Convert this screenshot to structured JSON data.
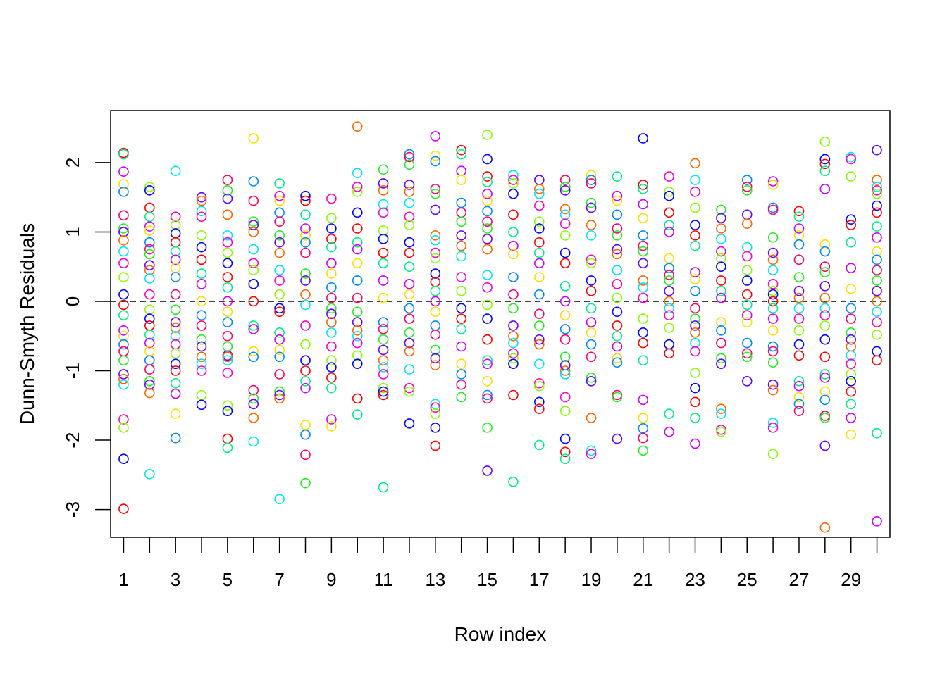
{
  "chart_data": {
    "type": "scatter",
    "title": "",
    "xlabel": "Row index",
    "ylabel": "Dunn-Smyth Residuals",
    "xlim": [
      0.5,
      30.5
    ],
    "ylim": [
      -3.4,
      2.75
    ],
    "x_ticks": [
      1,
      2,
      3,
      4,
      5,
      6,
      7,
      8,
      9,
      10,
      11,
      12,
      13,
      14,
      15,
      16,
      17,
      18,
      19,
      20,
      21,
      22,
      23,
      24,
      25,
      26,
      27,
      28,
      29,
      30
    ],
    "x_tick_labels": [
      "1",
      "",
      "3",
      "",
      "5",
      "",
      "7",
      "",
      "9",
      "",
      "11",
      "",
      "13",
      "",
      "15",
      "",
      "17",
      "",
      "19",
      "",
      "21",
      "",
      "23",
      "",
      "25",
      "",
      "27",
      "",
      "29",
      ""
    ],
    "y_ticks": [
      -3,
      -2,
      -1,
      0,
      1,
      2
    ],
    "y_tick_labels": [
      "-3",
      "-2",
      "-1",
      "0",
      "1",
      "2"
    ],
    "reference_line": {
      "y": 0,
      "style": "dashed"
    },
    "grid": false,
    "legend": "none",
    "marker": "open-circle",
    "palette": [
      "#FF0000",
      "#FF6600",
      "#FFDD00",
      "#88FF00",
      "#22EE22",
      "#00EE88",
      "#00E5FF",
      "#0088FF",
      "#0000FF",
      "#6600FF",
      "#CC00FF",
      "#FF00CC",
      "#FF0066"
    ],
    "points_by_row": [
      [
        2.14,
        2.12,
        1.87,
        1.69,
        1.58,
        1.24,
        1.05,
        1.0,
        0.88,
        0.72,
        0.55,
        0.35,
        0.1,
        -0.05,
        -0.2,
        -0.42,
        -0.5,
        -0.62,
        -0.72,
        -0.85,
        -1.05,
        -1.12,
        -1.2,
        -1.7,
        -1.82,
        -2.27,
        -2.99
      ],
      [
        1.65,
        1.6,
        1.35,
        1.22,
        1.08,
        1.02,
        0.85,
        0.75,
        0.68,
        0.52,
        0.45,
        0.33,
        0.1,
        -0.12,
        -0.25,
        -0.35,
        -0.48,
        -0.6,
        -0.72,
        -0.85,
        -0.98,
        -1.15,
        -1.2,
        -1.32,
        -2.49
      ],
      [
        1.88,
        1.22,
        1.1,
        0.98,
        0.85,
        0.72,
        0.6,
        0.48,
        0.35,
        0.1,
        -0.12,
        -0.3,
        -0.38,
        -0.5,
        -0.62,
        -0.75,
        -0.9,
        -1.0,
        -1.18,
        -1.33,
        -1.62,
        -1.97
      ],
      [
        1.5,
        1.45,
        1.3,
        1.22,
        0.95,
        0.78,
        0.6,
        0.4,
        0.25,
        0.0,
        -0.2,
        -0.35,
        -0.55,
        -0.65,
        -0.8,
        -0.9,
        -1.0,
        -1.35,
        -1.49
      ],
      [
        1.75,
        1.6,
        1.48,
        1.25,
        0.95,
        0.85,
        0.7,
        0.55,
        0.35,
        0.2,
        0.0,
        -0.15,
        -0.3,
        -0.5,
        -0.65,
        -0.78,
        -0.8,
        -0.85,
        -1.03,
        -1.5,
        -1.58,
        -1.98,
        -2.11
      ],
      [
        2.35,
        1.73,
        1.45,
        1.15,
        1.1,
        1.0,
        0.75,
        0.55,
        0.45,
        0.25,
        0.0,
        -0.35,
        -0.4,
        -0.72,
        -0.8,
        -1.28,
        -1.4,
        -1.48,
        -1.68,
        -2.02
      ],
      [
        1.7,
        1.52,
        1.45,
        1.28,
        1.15,
        0.95,
        0.85,
        0.7,
        0.45,
        0.3,
        0.1,
        -0.1,
        -0.15,
        -0.45,
        -0.55,
        -0.7,
        -0.8,
        -1.05,
        -1.3,
        -1.35,
        -1.4,
        -2.85
      ],
      [
        1.52,
        1.45,
        1.25,
        1.05,
        0.95,
        0.85,
        0.7,
        0.4,
        0.3,
        0.1,
        -0.05,
        -0.35,
        -0.62,
        -0.85,
        -1.0,
        -1.15,
        -1.25,
        -1.78,
        -1.92,
        -2.21,
        -2.62
      ],
      [
        1.48,
        1.2,
        1.05,
        0.9,
        0.78,
        0.55,
        0.4,
        0.2,
        0.05,
        -0.1,
        -0.18,
        -0.3,
        -0.45,
        -0.65,
        -0.85,
        -0.95,
        -1.1,
        -1.25,
        -1.7,
        -1.8
      ],
      [
        2.52,
        1.85,
        1.65,
        1.58,
        1.28,
        1.05,
        0.85,
        0.75,
        0.55,
        0.3,
        0.05,
        -0.15,
        -0.3,
        -0.42,
        -0.5,
        -0.6,
        -0.78,
        -0.9,
        -1.4,
        -1.63
      ],
      [
        1.9,
        1.7,
        1.6,
        1.4,
        1.28,
        1.02,
        0.9,
        0.7,
        0.55,
        0.3,
        0.05,
        -0.3,
        -0.4,
        -0.55,
        -0.7,
        -0.85,
        -0.95,
        -1.05,
        -1.25,
        -1.3,
        -1.35,
        -2.68
      ],
      [
        2.12,
        2.08,
        1.97,
        1.68,
        1.58,
        1.42,
        1.22,
        1.1,
        0.85,
        0.7,
        0.5,
        0.25,
        0.1,
        -0.1,
        -0.25,
        -0.45,
        -0.6,
        -0.72,
        -0.98,
        -1.25,
        -1.3,
        -1.76
      ],
      [
        2.38,
        2.1,
        2.02,
        1.62,
        1.55,
        1.32,
        0.95,
        0.88,
        0.7,
        0.62,
        0.4,
        0.28,
        0.15,
        0.0,
        -0.15,
        -0.35,
        -0.48,
        -0.7,
        -0.82,
        -0.92,
        -1.48,
        -1.53,
        -1.62,
        -1.82,
        -2.08
      ],
      [
        2.18,
        2.12,
        1.88,
        1.75,
        1.42,
        1.28,
        1.15,
        0.95,
        0.8,
        0.65,
        0.35,
        0.15,
        -0.1,
        -0.25,
        -0.4,
        -0.65,
        -0.9,
        -1.05,
        -1.2,
        -1.38
      ],
      [
        2.4,
        2.05,
        1.8,
        1.72,
        1.55,
        1.45,
        1.3,
        1.15,
        1.05,
        0.9,
        0.75,
        0.38,
        0.2,
        -0.05,
        -0.25,
        -0.55,
        -0.85,
        -0.9,
        -1.15,
        -1.35,
        -1.4,
        -1.82,
        -2.44
      ],
      [
        1.82,
        1.75,
        1.7,
        1.55,
        1.25,
        1.0,
        0.8,
        0.68,
        0.35,
        0.1,
        -0.1,
        -0.35,
        -0.5,
        -0.6,
        -0.75,
        -0.82,
        -0.9,
        -1.35,
        -2.6
      ],
      [
        1.75,
        1.62,
        1.55,
        1.38,
        1.15,
        1.05,
        0.85,
        0.7,
        0.55,
        0.35,
        0.1,
        -0.18,
        -0.35,
        -0.55,
        -0.62,
        -0.9,
        -1.18,
        -1.22,
        -1.45,
        -1.55,
        -2.07
      ],
      [
        1.75,
        1.65,
        1.6,
        1.33,
        1.25,
        1.12,
        0.95,
        0.7,
        0.55,
        0.22,
        0.0,
        -0.2,
        -0.4,
        -0.55,
        -0.8,
        -0.92,
        -1.0,
        -1.05,
        -1.38,
        -1.58,
        -1.98,
        -2.17,
        -2.27
      ],
      [
        1.82,
        1.75,
        1.7,
        1.42,
        1.35,
        1.1,
        0.95,
        0.6,
        0.55,
        0.3,
        0.15,
        -0.1,
        -0.3,
        -0.45,
        -0.62,
        -0.8,
        -1.1,
        -1.15,
        -1.68,
        -2.15,
        -2.2
      ],
      [
        1.8,
        1.52,
        1.45,
        1.25,
        1.05,
        0.95,
        0.75,
        0.68,
        0.45,
        0.25,
        0.05,
        -0.15,
        -0.35,
        -0.5,
        -0.65,
        -0.82,
        -0.88,
        -1.35,
        -1.38,
        -1.98
      ],
      [
        2.35,
        1.68,
        1.62,
        1.4,
        1.2,
        0.95,
        0.8,
        0.72,
        0.55,
        0.3,
        0.2,
        0.05,
        -0.25,
        -0.45,
        -0.6,
        -0.85,
        -1.42,
        -1.68,
        -1.83,
        -1.97,
        -2.15
      ],
      [
        1.8,
        1.58,
        1.52,
        1.28,
        1.1,
        1.0,
        0.62,
        0.48,
        0.38,
        0.3,
        0.15,
        0.0,
        -0.1,
        -0.2,
        -0.38,
        -0.62,
        -0.75,
        -1.62,
        -1.88
      ],
      [
        1.99,
        1.75,
        1.58,
        1.35,
        1.1,
        0.95,
        0.8,
        0.42,
        0.32,
        0.15,
        -0.1,
        -0.25,
        -0.35,
        -0.45,
        -0.6,
        -0.72,
        -1.03,
        -1.25,
        -1.45,
        -1.68,
        -2.05
      ],
      [
        1.32,
        1.2,
        1.05,
        0.9,
        0.72,
        0.62,
        0.5,
        0.3,
        0.15,
        0.05,
        -0.3,
        -0.42,
        -0.6,
        -0.82,
        -0.9,
        -1.55,
        -1.62,
        -1.85,
        -1.88
      ],
      [
        1.75,
        1.65,
        1.6,
        1.25,
        1.12,
        0.78,
        0.65,
        0.45,
        0.3,
        0.1,
        -0.05,
        -0.2,
        -0.3,
        -0.6,
        -0.75,
        -0.8,
        -1.15
      ],
      [
        1.73,
        1.68,
        1.35,
        1.32,
        0.92,
        0.7,
        0.6,
        0.45,
        0.25,
        0.15,
        0.1,
        0.0,
        -0.1,
        -0.25,
        -0.42,
        -0.65,
        -0.72,
        -0.88,
        -1.2,
        -1.28,
        -1.75,
        -1.82,
        -2.2
      ],
      [
        1.3,
        1.22,
        1.05,
        0.95,
        0.82,
        0.6,
        0.35,
        0.15,
        0.05,
        -0.1,
        -0.25,
        -0.42,
        -0.62,
        -0.78,
        -1.15,
        -1.22,
        -1.38,
        -1.48,
        -1.58
      ],
      [
        2.3,
        2.05,
        1.98,
        1.88,
        1.62,
        0.82,
        0.72,
        0.5,
        0.42,
        0.22,
        0.05,
        -0.1,
        -0.2,
        -0.35,
        -0.55,
        -0.8,
        -1.05,
        -1.1,
        -1.3,
        -1.42,
        -1.65,
        -1.68,
        -2.08,
        -3.26
      ],
      [
        2.08,
        2.05,
        1.8,
        1.18,
        1.1,
        0.85,
        0.48,
        0.18,
        -0.1,
        -0.25,
        -0.45,
        -0.55,
        -0.65,
        -0.78,
        -0.9,
        -1.05,
        -1.15,
        -1.3,
        -1.48,
        -1.68,
        -1.92
      ],
      [
        2.18,
        1.75,
        1.65,
        1.6,
        1.55,
        1.38,
        1.28,
        1.08,
        0.92,
        0.72,
        0.6,
        0.45,
        0.3,
        0.15,
        0.0,
        -0.15,
        -0.3,
        -0.48,
        -0.72,
        -0.85,
        -1.9,
        -3.17
      ]
    ]
  }
}
